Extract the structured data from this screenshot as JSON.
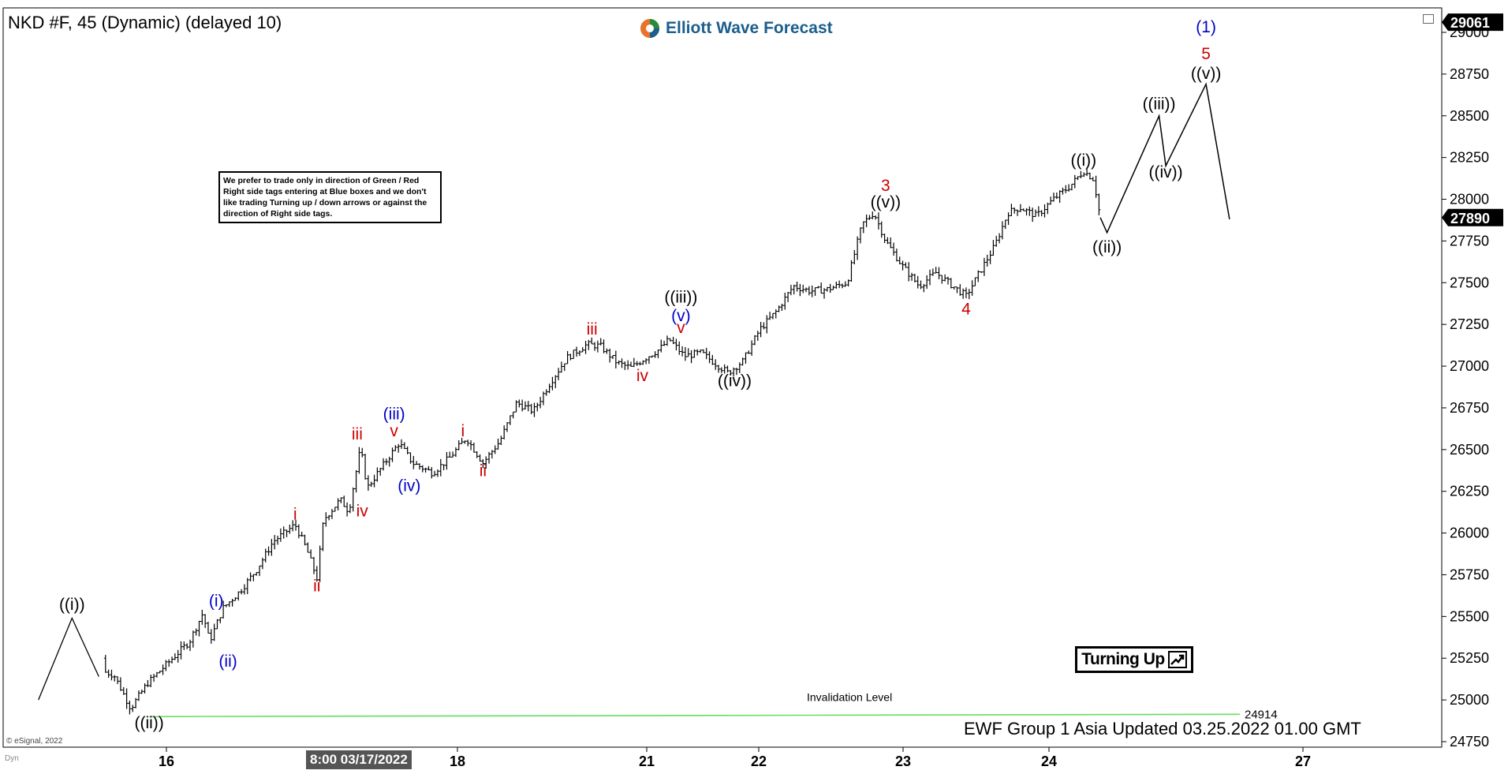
{
  "header": {
    "symbol_title": "NKD #F, 45 (Dynamic) (delayed 10)"
  },
  "logo": {
    "text": "Elliott Wave Forecast",
    "color": "#1c5e8c"
  },
  "note": {
    "text": "We prefer to trade only in direction of Green / Red Right side tags entering at Blue boxes and we don't like trading Turning up / down arrows or against the direction of Right side tags."
  },
  "turning_up": {
    "label": "Turning Up"
  },
  "footer": {
    "text": "EWF Group 1 Asia  Updated 03.25.2022 01.00 GMT"
  },
  "copyright": "© eSignal, 2022",
  "dyn_label": "Dyn",
  "date_flag": "8:00 03/17/2022",
  "colors": {
    "black": "#000000",
    "red": "#cc0000",
    "blue": "#0000cc",
    "green": "#66dd66"
  },
  "chart_data": {
    "type": "ohlc",
    "ylim": [
      24500,
      29200
    ],
    "y_ticks": [
      24750,
      25000,
      25250,
      25500,
      25750,
      26000,
      26250,
      26500,
      26750,
      27000,
      27250,
      27500,
      27750,
      28000,
      28250,
      28500,
      28750,
      29000
    ],
    "x_ticks": [
      "16",
      "18",
      "21",
      "22",
      "23",
      "24",
      "27"
    ],
    "price_tags": [
      {
        "label": "29061",
        "value": 29061
      },
      {
        "label": "27890",
        "value": 27890
      }
    ],
    "price_path": [
      [
        0.0,
        25250
      ],
      [
        2.0,
        25200
      ],
      [
        3.5,
        25150
      ],
      [
        4.5,
        24950
      ],
      [
        5.5,
        25100
      ],
      [
        7,
        25250
      ],
      [
        8,
        25350
      ],
      [
        8.8,
        25520
      ],
      [
        9.2,
        25350
      ],
      [
        10,
        25550
      ],
      [
        11,
        25650
      ],
      [
        12,
        25780
      ],
      [
        13,
        25950
      ],
      [
        14.3,
        26050
      ],
      [
        15,
        25900
      ],
      [
        15.6,
        25730
      ],
      [
        16,
        26080
      ],
      [
        17,
        26200
      ],
      [
        17.5,
        26130
      ],
      [
        18.2,
        26510
      ],
      [
        18.6,
        26270
      ],
      [
        19.5,
        26400
      ],
      [
        20.5,
        26540
      ],
      [
        21.3,
        26420
      ],
      [
        22.5,
        26360
      ],
      [
        23.5,
        26450
      ],
      [
        24.5,
        26570
      ],
      [
        25.5,
        26420
      ],
      [
        26.5,
        26550
      ],
      [
        27.5,
        26780
      ],
      [
        28.5,
        26730
      ],
      [
        29.5,
        26900
      ],
      [
        30.5,
        27050
      ],
      [
        31.7,
        27130
      ],
      [
        32.5,
        27120
      ],
      [
        33.5,
        27020
      ],
      [
        34.3,
        26990
      ],
      [
        35.2,
        27050
      ],
      [
        36,
        27100
      ],
      [
        36.6,
        27160
      ],
      [
        37.5,
        27060
      ],
      [
        38.5,
        27080
      ],
      [
        39.3,
        27020
      ],
      [
        40.1,
        26960
      ],
      [
        41,
        27030
      ],
      [
        42,
        27220
      ],
      [
        43,
        27330
      ],
      [
        44,
        27480
      ],
      [
        45,
        27450
      ],
      [
        46,
        27460
      ],
      [
        47.2,
        27500
      ],
      [
        48.1,
        27850
      ],
      [
        48.8,
        27920
      ],
      [
        49.5,
        27750
      ],
      [
        50.5,
        27600
      ],
      [
        51.5,
        27480
      ],
      [
        52.5,
        27560
      ],
      [
        53.5,
        27480
      ],
      [
        54.3,
        27420
      ],
      [
        55.2,
        27580
      ],
      [
        56,
        27720
      ],
      [
        56.8,
        27920
      ],
      [
        57.5,
        27950
      ],
      [
        58.5,
        27900
      ],
      [
        59.5,
        28000
      ],
      [
        60.5,
        28080
      ],
      [
        61.3,
        28170
      ],
      [
        61.9,
        28120
      ],
      [
        62.3,
        27890
      ]
    ],
    "projection": [
      [
        62.3,
        27890
      ],
      [
        62.7,
        27800
      ],
      [
        65.8,
        28500
      ],
      [
        66.2,
        28200
      ],
      [
        68.6,
        28690
      ],
      [
        70.0,
        27880
      ]
    ],
    "left_path": [
      [
        -1.0,
        25000
      ],
      [
        1.0,
        25490
      ],
      [
        2.6,
        25140
      ]
    ],
    "wave_labels": [
      {
        "text": "((i))",
        "x": 1.0,
        "v": 25540,
        "color": "black"
      },
      {
        "text": "((ii))",
        "x": 5.6,
        "v": 24830,
        "color": "black"
      },
      {
        "text": "(i)",
        "x": 9.6,
        "v": 25560,
        "color": "blue"
      },
      {
        "text": "(ii)",
        "x": 10.3,
        "v": 25200,
        "color": "blue"
      },
      {
        "text": "i",
        "x": 14.3,
        "v": 26080,
        "color": "red"
      },
      {
        "text": "ii",
        "x": 15.6,
        "v": 25650,
        "color": "red"
      },
      {
        "text": "iii",
        "x": 18.0,
        "v": 26560,
        "color": "red"
      },
      {
        "text": "iv",
        "x": 18.3,
        "v": 26100,
        "color": "red"
      },
      {
        "text": "(iii)",
        "x": 20.2,
        "v": 26680,
        "color": "blue"
      },
      {
        "text": "v",
        "x": 20.2,
        "v": 26580,
        "color": "red"
      },
      {
        "text": "(iv)",
        "x": 21.1,
        "v": 26250,
        "color": "blue"
      },
      {
        "text": "i",
        "x": 24.3,
        "v": 26580,
        "color": "red"
      },
      {
        "text": "ii",
        "x": 25.5,
        "v": 26340,
        "color": "red"
      },
      {
        "text": "iii",
        "x": 32.0,
        "v": 27190,
        "color": "red"
      },
      {
        "text": "iv",
        "x": 35.0,
        "v": 26910,
        "color": "red"
      },
      {
        "text": "((iii))",
        "x": 37.3,
        "v": 27380,
        "color": "black"
      },
      {
        "text": "(v)",
        "x": 37.3,
        "v": 27270,
        "color": "blue"
      },
      {
        "text": "v",
        "x": 37.3,
        "v": 27200,
        "color": "red"
      },
      {
        "text": "((iv))",
        "x": 40.5,
        "v": 26880,
        "color": "black"
      },
      {
        "text": "3",
        "x": 49.5,
        "v": 28050,
        "color": "red"
      },
      {
        "text": "((v))",
        "x": 49.5,
        "v": 27950,
        "color": "black"
      },
      {
        "text": "4",
        "x": 54.3,
        "v": 27310,
        "color": "red"
      },
      {
        "text": "((i))",
        "x": 61.3,
        "v": 28200,
        "color": "black"
      },
      {
        "text": "((ii))",
        "x": 62.7,
        "v": 27680,
        "color": "black"
      },
      {
        "text": "((iii))",
        "x": 65.8,
        "v": 28540,
        "color": "black"
      },
      {
        "text": "((iv))",
        "x": 66.2,
        "v": 28130,
        "color": "black"
      },
      {
        "text": "(1)",
        "x": 68.6,
        "v": 29000,
        "color": "blue"
      },
      {
        "text": "5",
        "x": 68.6,
        "v": 28840,
        "color": "red"
      },
      {
        "text": "((v))",
        "x": 68.6,
        "v": 28720,
        "color": "black"
      }
    ],
    "invalidation": {
      "label": "Invalidation Level",
      "value_label": "24914",
      "start_x": 5.6,
      "end_x": 62.3,
      "start_v": 24900,
      "end_v": 24914
    }
  }
}
